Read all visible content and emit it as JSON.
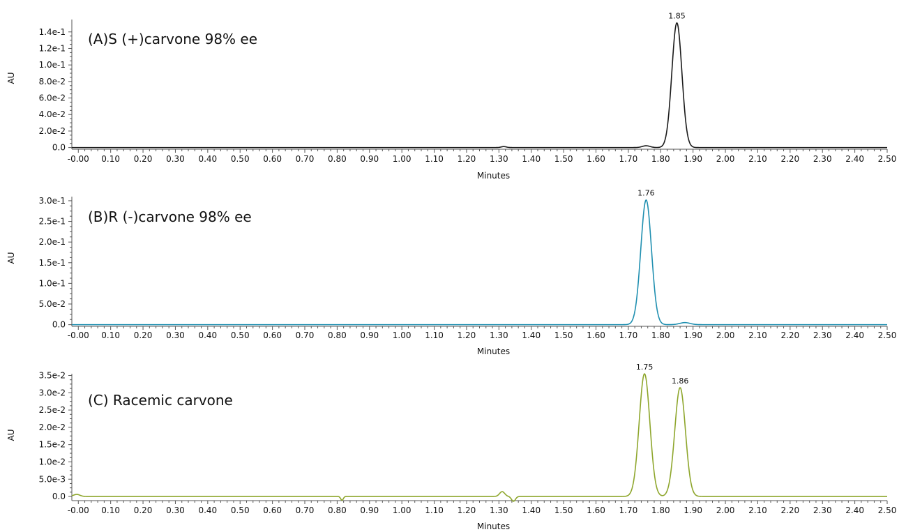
{
  "chart_data": [
    {
      "type": "line",
      "title": "(A)S (+)carvone 98% ee",
      "xlabel": "Minutes",
      "ylabel": "AU",
      "xlim": [
        -0.02,
        2.5
      ],
      "ylim": [
        -0.002,
        0.155
      ],
      "x_ticks": [
        "-0.00",
        "0.10",
        "0.20",
        "0.30",
        "0.40",
        "0.50",
        "0.60",
        "0.70",
        "0.80",
        "0.90",
        "1.00",
        "1.10",
        "1.20",
        "1.30",
        "1.40",
        "1.50",
        "1.60",
        "1.70",
        "1.80",
        "1.90",
        "2.00",
        "2.10",
        "2.20",
        "2.30",
        "2.40",
        "2.50"
      ],
      "y_ticks": [
        {
          "value": 0.0,
          "label": "0.0"
        },
        {
          "value": 0.02,
          "label": "2.0e-2"
        },
        {
          "value": 0.04,
          "label": "4.0e-2"
        },
        {
          "value": 0.06,
          "label": "6.0e-2"
        },
        {
          "value": 0.08,
          "label": "8.0e-2"
        },
        {
          "value": 0.1,
          "label": "1.0e-1"
        },
        {
          "value": 0.12,
          "label": "1.2e-1"
        },
        {
          "value": 0.14,
          "label": "1.4e-1"
        }
      ],
      "color": "#1a1a1a",
      "baseline": 0.0,
      "peaks": [
        {
          "rt": 1.85,
          "height": 0.151,
          "sigma": 0.0155,
          "label": "1.85"
        },
        {
          "rt": 1.755,
          "height": 0.0022,
          "sigma": 0.012,
          "label": ""
        },
        {
          "rt": 1.315,
          "height": 0.0012,
          "sigma": 0.008,
          "label": ""
        }
      ]
    },
    {
      "type": "line",
      "title": "(B)R (-)carvone 98% ee",
      "xlabel": "Minutes",
      "ylabel": "AU",
      "xlim": [
        -0.02,
        2.5
      ],
      "ylim": [
        -0.004,
        0.31
      ],
      "x_ticks": [
        "-0.00",
        "0.10",
        "0.20",
        "0.30",
        "0.40",
        "0.50",
        "0.60",
        "0.70",
        "0.80",
        "0.90",
        "1.00",
        "1.10",
        "1.20",
        "1.30",
        "1.40",
        "1.50",
        "1.60",
        "1.70",
        "1.80",
        "1.90",
        "2.00",
        "2.10",
        "2.20",
        "2.30",
        "2.40",
        "2.50"
      ],
      "y_ticks": [
        {
          "value": 0.0,
          "label": "0.0"
        },
        {
          "value": 0.05,
          "label": "5.0e-2"
        },
        {
          "value": 0.1,
          "label": "1.0e-1"
        },
        {
          "value": 0.15,
          "label": "1.5e-1"
        },
        {
          "value": 0.2,
          "label": "2.0e-1"
        },
        {
          "value": 0.25,
          "label": "2.5e-1"
        },
        {
          "value": 0.3,
          "label": "3.0e-1"
        }
      ],
      "color": "#1f8fb0",
      "baseline": 0.0,
      "peaks": [
        {
          "rt": 1.755,
          "height": 0.302,
          "sigma": 0.0165,
          "label": "1.76"
        },
        {
          "rt": 1.875,
          "height": 0.005,
          "sigma": 0.016,
          "label": ""
        }
      ]
    },
    {
      "type": "line",
      "title": "(C) Racemic carvone",
      "xlabel": "Minutes",
      "ylabel": "AU",
      "xlim": [
        -0.02,
        2.5
      ],
      "ylim": [
        -0.0012,
        0.0355
      ],
      "x_ticks": [
        "-0.00",
        "0.10",
        "0.20",
        "0.30",
        "0.40",
        "0.50",
        "0.60",
        "0.70",
        "0.80",
        "0.90",
        "1.00",
        "1.10",
        "1.20",
        "1.30",
        "1.40",
        "1.50",
        "1.60",
        "1.70",
        "1.80",
        "1.90",
        "2.00",
        "2.10",
        "2.20",
        "2.30",
        "2.40",
        "2.50"
      ],
      "y_ticks": [
        {
          "value": 0.0,
          "label": "0.0"
        },
        {
          "value": 0.005,
          "label": "5.0e-3"
        },
        {
          "value": 0.01,
          "label": "1.0e-2"
        },
        {
          "value": 0.015,
          "label": "1.5e-2"
        },
        {
          "value": 0.02,
          "label": "2.0e-2"
        },
        {
          "value": 0.025,
          "label": "2.5e-2"
        },
        {
          "value": 0.03,
          "label": "3.0e-2"
        },
        {
          "value": 0.035,
          "label": "3.5e-2"
        }
      ],
      "color": "#8ea62c",
      "baseline": 0.0,
      "peaks": [
        {
          "rt": 1.75,
          "height": 0.0355,
          "sigma": 0.0165,
          "label": "1.75"
        },
        {
          "rt": 1.86,
          "height": 0.0315,
          "sigma": 0.0165,
          "label": "1.86"
        },
        {
          "rt": 1.31,
          "height": 0.0014,
          "sigma": 0.008,
          "label": ""
        },
        {
          "rt": 1.345,
          "height": -0.0014,
          "sigma": 0.006,
          "label": ""
        },
        {
          "rt": 0.815,
          "height": -0.0011,
          "sigma": 0.004,
          "label": ""
        },
        {
          "rt": -0.005,
          "height": 0.0006,
          "sigma": 0.01,
          "label": ""
        }
      ]
    }
  ]
}
